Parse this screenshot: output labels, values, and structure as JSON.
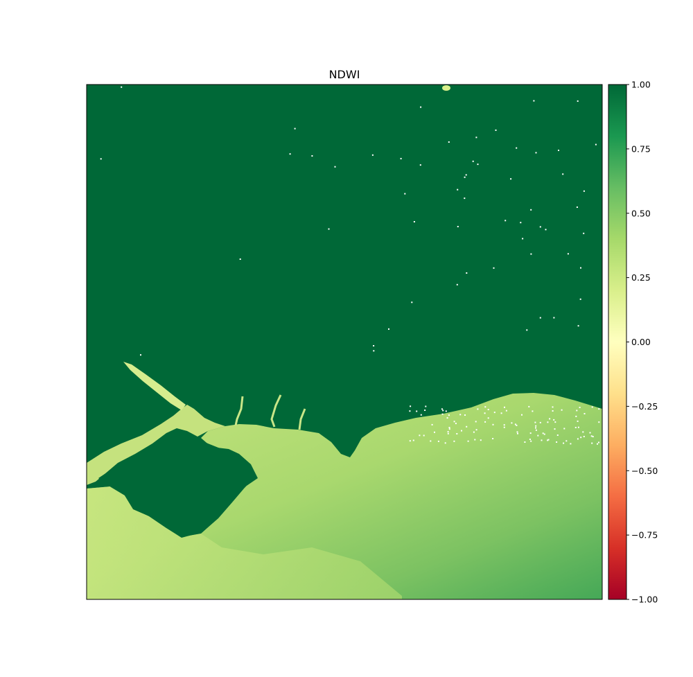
{
  "chart_data": {
    "type": "heatmap",
    "title": "NDWI",
    "colormap": "RdYlGn",
    "colorbar": {
      "vmin": -1.0,
      "vmax": 1.0,
      "ticks": [
        1.0,
        0.75,
        0.5,
        0.25,
        0.0,
        -0.25,
        -0.5,
        -0.75,
        -1.0
      ],
      "tick_labels": [
        "1.00",
        "0.75",
        "0.50",
        "0.25",
        "0.00",
        "−0.25",
        "−0.50",
        "−0.75",
        "−1.00"
      ],
      "colors": [
        "#a50026",
        "#d73027",
        "#f46d43",
        "#fdae61",
        "#fee08b",
        "#ffffbf",
        "#d9ef8b",
        "#a6d96a",
        "#66bd63",
        "#1a9850",
        "#006837"
      ]
    },
    "axes": {
      "xticks": [],
      "yticks": []
    },
    "map_colors": {
      "high_ndwi": "#006837",
      "water_light": "#b5dc74",
      "water_mid": "#8cca64",
      "water_pale": "#dff0a0",
      "water_dark": "#4fae5c"
    }
  }
}
